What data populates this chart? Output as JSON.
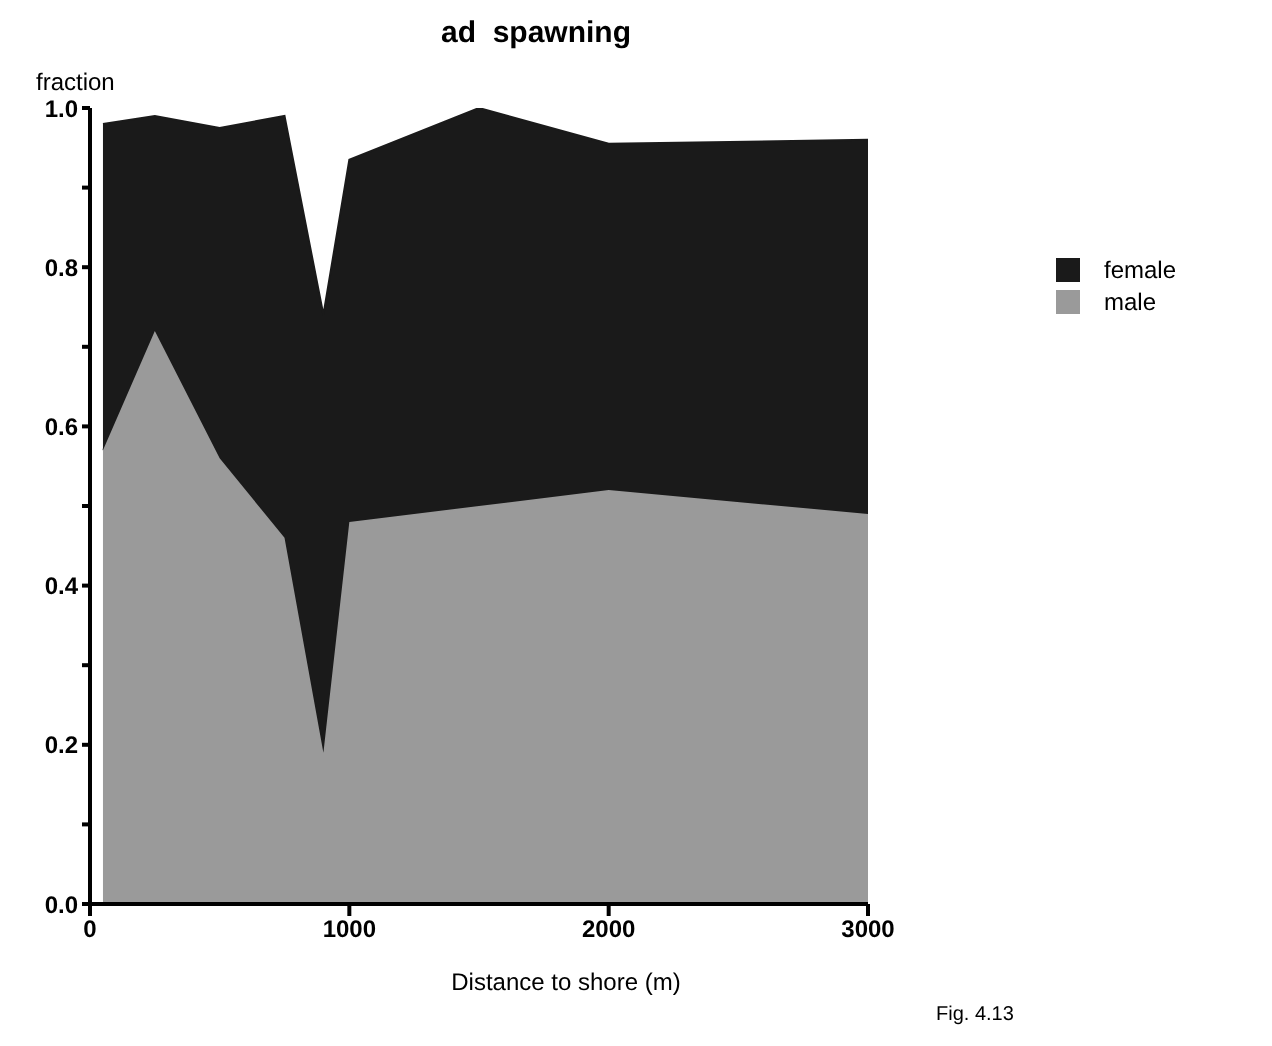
{
  "chart_data": {
    "type": "area",
    "title": "ad  spawning",
    "xlabel": "Distance to shore (m)",
    "ylabel": "fraction",
    "annotations": [
      "Fig. 4.13"
    ],
    "x": [
      50,
      250,
      500,
      750,
      900,
      1000,
      1500,
      2000,
      3000
    ],
    "series": [
      {
        "name": "male",
        "color": "#9a9a9a",
        "values": [
          0.57,
          0.72,
          0.56,
          0.46,
          0.19,
          0.48,
          0.5,
          0.52,
          0.49
        ]
      },
      {
        "name": "female",
        "color": "#1a1a1a",
        "values": [
          0.41,
          0.27,
          0.415,
          0.53,
          0.55,
          0.455,
          0.5,
          0.435,
          0.47
        ]
      }
    ],
    "stacked": true,
    "xlim": [
      0,
      3000
    ],
    "xticks": [
      0,
      1000,
      2000,
      3000
    ],
    "ylim": [
      0,
      1
    ],
    "yticks": [
      {
        "value": 0,
        "label": "0.0"
      },
      {
        "value": 0.1,
        "label": null
      },
      {
        "value": 0.2,
        "label": "0.2"
      },
      {
        "value": 0.3,
        "label": null
      },
      {
        "value": 0.4,
        "label": "0.4"
      },
      {
        "value": 0.5,
        "label": null
      },
      {
        "value": 0.6,
        "label": "0.6"
      },
      {
        "value": 0.7,
        "label": null
      },
      {
        "value": 0.8,
        "label": "0.8"
      },
      {
        "value": 0.9,
        "label": null
      },
      {
        "value": 1,
        "label": "1.0"
      }
    ],
    "grid": false,
    "legend": "right"
  }
}
